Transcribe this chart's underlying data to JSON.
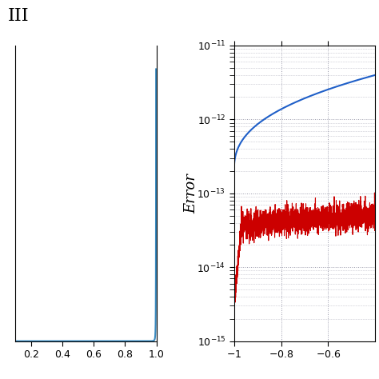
{
  "title_left": "III",
  "ylabel_right": "Error",
  "left_xlim": [
    0.1,
    1.0
  ],
  "left_xticks": [
    0.2,
    0.4,
    0.6,
    0.8,
    1.0
  ],
  "right_xlim": [
    -1.0,
    -0.4
  ],
  "right_xticks": [
    -1.0,
    -0.8,
    -0.6
  ],
  "right_ylim": [
    1e-15,
    1e-11
  ],
  "right_yticks": [
    1e-15,
    1e-14,
    1e-13,
    1e-12,
    1e-11
  ],
  "blue_line_color": "#1f5fc8",
  "red_line_color": "#cc0000",
  "left_line_color": "#3a8abf",
  "background_color": "#ffffff",
  "grid_color": "#9999aa",
  "figsize": [
    4.74,
    4.74
  ],
  "dpi": 100
}
